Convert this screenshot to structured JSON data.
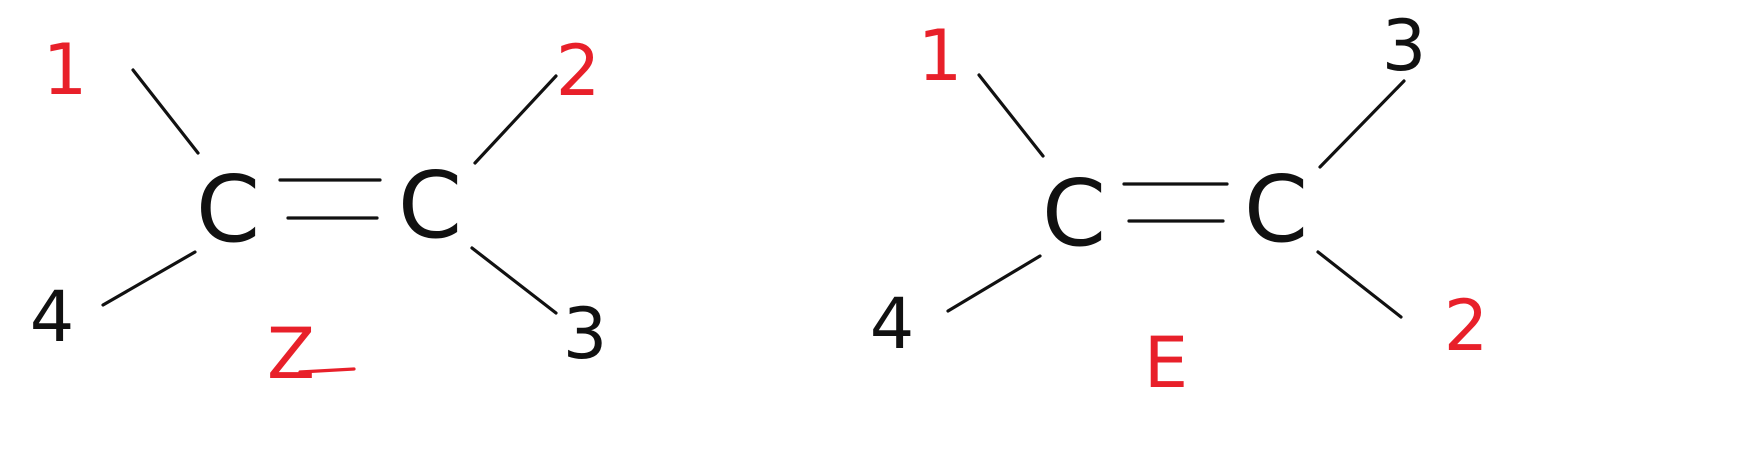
{
  "colors": {
    "ink": "#111111",
    "accent": "#e8202a",
    "background": "#ffffff"
  },
  "structures": [
    {
      "id": "z-isomer",
      "isomer_label": "Z",
      "atoms": [
        "C",
        "C"
      ],
      "bond": "double",
      "substituent_labels": {
        "upper_left": "1",
        "upper_right": "2",
        "lower_left": "4",
        "lower_right": "3"
      }
    },
    {
      "id": "e-isomer",
      "isomer_label": "E",
      "atoms": [
        "C",
        "C"
      ],
      "bond": "double",
      "substituent_labels": {
        "upper_left": "1",
        "upper_right": "3",
        "lower_left": "4",
        "lower_right": "2"
      }
    }
  ]
}
